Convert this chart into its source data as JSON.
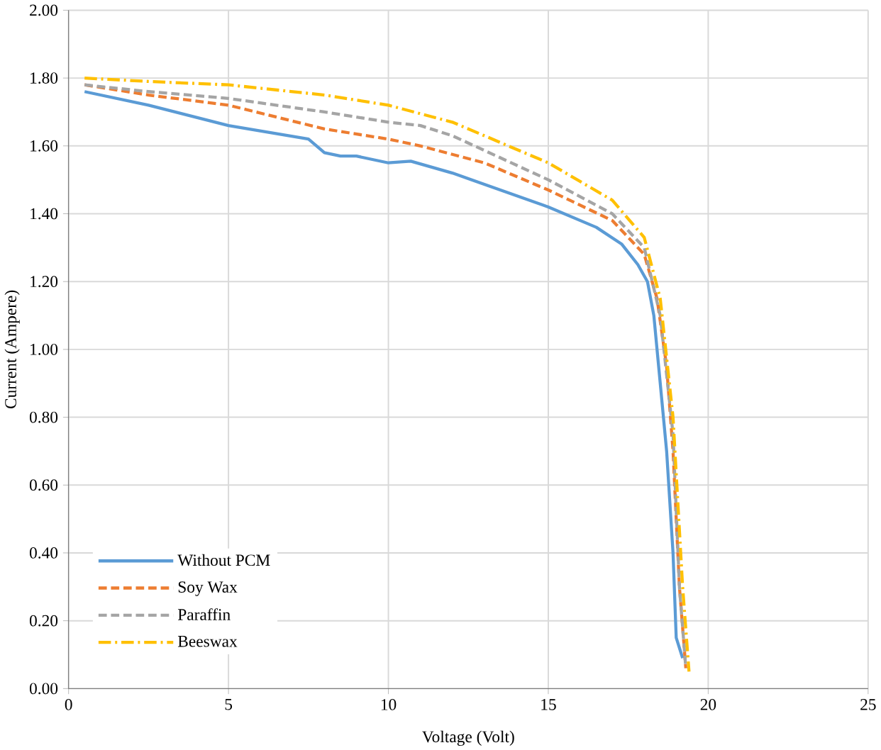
{
  "chart_data": {
    "type": "line",
    "xlabel": "Voltage (Volt)",
    "ylabel": "Current (Ampere)",
    "xlim": [
      0,
      25
    ],
    "xticks": [
      0,
      5,
      10,
      15,
      20,
      25
    ],
    "ylim": [
      0,
      2
    ],
    "yticks": [
      {
        "value": 0,
        "label": "0.00"
      },
      {
        "value": 0.2,
        "label": "0.20"
      },
      {
        "value": 0.4,
        "label": "0.40"
      },
      {
        "value": 0.6,
        "label": "0.60"
      },
      {
        "value": 0.8,
        "label": "0.80"
      },
      {
        "value": 1,
        "label": "1.00"
      },
      {
        "value": 1.2,
        "label": "1.20"
      },
      {
        "value": 1.4,
        "label": "1.40"
      },
      {
        "value": 1.6,
        "label": "1.60"
      },
      {
        "value": 1.8,
        "label": "1.80"
      },
      {
        "value": 2,
        "label": "2.00"
      }
    ],
    "grid": true,
    "legend": "bottom left",
    "marker": "none",
    "series": [
      {
        "name": "Without PCM",
        "color": "#5b9bd5",
        "line_style": "solid",
        "x": [
          0.5,
          2.5,
          5,
          7.5,
          8,
          8.5,
          9,
          10,
          10.7,
          12,
          13.5,
          15,
          16.5,
          17.3,
          17.8,
          18.1,
          18.3,
          18.45,
          18.7,
          18.9,
          19.0,
          19.2
        ],
        "values": [
          1.76,
          1.72,
          1.66,
          1.62,
          1.58,
          1.57,
          1.57,
          1.55,
          1.555,
          1.52,
          1.47,
          1.42,
          1.36,
          1.31,
          1.25,
          1.2,
          1.1,
          0.95,
          0.7,
          0.4,
          0.15,
          0.09
        ]
      },
      {
        "name": "Soy Wax",
        "color": "#ed7d31",
        "line_style": "dashed",
        "x": [
          0.5,
          2.5,
          5,
          8,
          10,
          11,
          13,
          15,
          17,
          18,
          18.4,
          18.7,
          18.9,
          19.1,
          19.3
        ],
        "values": [
          1.78,
          1.75,
          1.72,
          1.65,
          1.62,
          1.6,
          1.55,
          1.47,
          1.38,
          1.28,
          1.15,
          0.95,
          0.7,
          0.3,
          0.06
        ]
      },
      {
        "name": "Paraffin",
        "color": "#a5a5a5",
        "line_style": "dashed",
        "x": [
          0.5,
          2.5,
          5,
          8,
          10,
          11,
          12,
          15,
          17,
          18,
          18.5,
          18.9,
          19.1,
          19.3
        ],
        "values": [
          1.78,
          1.76,
          1.74,
          1.7,
          1.67,
          1.66,
          1.63,
          1.5,
          1.4,
          1.3,
          1.1,
          0.75,
          0.3,
          0.06
        ]
      },
      {
        "name": "Beeswax",
        "color": "#ffc000",
        "line_style": "dashdot",
        "x": [
          0.5,
          2.5,
          5,
          8,
          10,
          12,
          15,
          17,
          18,
          18.5,
          18.9,
          19.2,
          19.4
        ],
        "values": [
          1.8,
          1.79,
          1.78,
          1.75,
          1.72,
          1.67,
          1.55,
          1.44,
          1.33,
          1.15,
          0.8,
          0.3,
          0.05
        ]
      }
    ]
  }
}
